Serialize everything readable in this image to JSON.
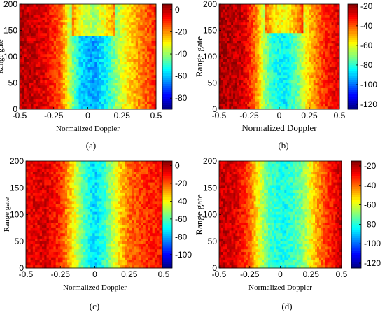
{
  "chart_data": [
    {
      "type": "heatmap",
      "panel_label": "(a)",
      "xlabel": "Normalized Doppler",
      "ylabel": "Range gate",
      "xlim": [
        -0.5,
        0.5
      ],
      "ylim": [
        0,
        200
      ],
      "xticks": [
        "-0.5",
        "-0.25",
        "0",
        "0.25",
        "0.5"
      ],
      "yticks": [
        "0",
        "50",
        "100",
        "150",
        "200"
      ],
      "colorbar": {
        "range": [
          -90,
          5
        ],
        "ticks": [
          "0",
          "-20",
          "-40",
          "-60",
          "-80"
        ]
      },
      "pattern": {
        "profile": [
          [
            -0.5,
            0
          ],
          [
            -0.32,
            -4
          ],
          [
            -0.2,
            -15
          ],
          [
            -0.12,
            -40
          ],
          [
            -0.05,
            -58
          ],
          [
            0.05,
            -63
          ],
          [
            0.15,
            -52
          ],
          [
            0.22,
            -38
          ],
          [
            0.3,
            -28
          ],
          [
            0.4,
            -18
          ],
          [
            0.5,
            -10
          ]
        ],
        "note_values_dB_at_range_gate_100": true,
        "step_at_range_gate": 140
      }
    },
    {
      "type": "heatmap",
      "panel_label": "(b)",
      "xlabel": "Normalized Doppler",
      "ylabel": "Range gate",
      "xlim": [
        -0.5,
        0.5
      ],
      "ylim": [
        0,
        200
      ],
      "xticks": [
        "-0.5",
        "-0.25",
        "0",
        "0.25",
        "0.5"
      ],
      "yticks": [
        "0",
        "50",
        "100",
        "150",
        "200"
      ],
      "colorbar": {
        "range": [
          -125,
          -18
        ],
        "ticks": [
          "-20",
          "-40",
          "-60",
          "-80",
          "-100",
          "-120"
        ]
      },
      "pattern": {
        "profile": [
          [
            -0.5,
            -22
          ],
          [
            -0.3,
            -26
          ],
          [
            -0.2,
            -42
          ],
          [
            -0.12,
            -68
          ],
          [
            -0.05,
            -82
          ],
          [
            0.05,
            -86
          ],
          [
            0.15,
            -75
          ],
          [
            0.22,
            -58
          ],
          [
            0.3,
            -45
          ],
          [
            0.4,
            -34
          ],
          [
            0.5,
            -28
          ]
        ],
        "step_at_range_gate": 145
      }
    },
    {
      "type": "heatmap",
      "panel_label": "(c)",
      "xlabel": "Normalized Doppler",
      "ylabel": "Range gate",
      "xlim": [
        -0.5,
        0.5
      ],
      "ylim": [
        0,
        200
      ],
      "xticks": [
        "-0.5",
        "-0.25",
        "0",
        "0.25",
        "0.5"
      ],
      "yticks": [
        "0",
        "50",
        "100",
        "150",
        "200"
      ],
      "colorbar": {
        "range": [
          -115,
          5
        ],
        "ticks": [
          "0",
          "-20",
          "-40",
          "-60",
          "-80",
          "-100"
        ]
      },
      "pattern": {
        "profile": [
          [
            -0.5,
            -8
          ],
          [
            -0.35,
            -6
          ],
          [
            -0.25,
            -14
          ],
          [
            -0.17,
            -35
          ],
          [
            -0.08,
            -60
          ],
          [
            0.0,
            -75
          ],
          [
            0.08,
            -62
          ],
          [
            0.17,
            -38
          ],
          [
            0.25,
            -22
          ],
          [
            0.4,
            -14
          ],
          [
            0.5,
            -10
          ]
        ],
        "step_at_range_gate": null
      }
    },
    {
      "type": "heatmap",
      "panel_label": "(d)",
      "xlabel": "Normalized Doppler",
      "ylabel": "Range gate",
      "xlim": [
        -0.5,
        0.5
      ],
      "ylim": [
        0,
        200
      ],
      "xticks": [
        "-0.5",
        "-0.25",
        "0",
        "0.25",
        "0.5"
      ],
      "yticks": [
        "0",
        "50",
        "100",
        "150",
        "200"
      ],
      "colorbar": {
        "range": [
          -125,
          -15
        ],
        "ticks": [
          "-20",
          "-40",
          "-60",
          "-80",
          "-100",
          "-120"
        ]
      },
      "pattern": {
        "profile": [
          [
            -0.5,
            -22
          ],
          [
            -0.35,
            -26
          ],
          [
            -0.25,
            -38
          ],
          [
            -0.17,
            -60
          ],
          [
            -0.08,
            -78
          ],
          [
            0.05,
            -82
          ],
          [
            0.17,
            -72
          ],
          [
            0.27,
            -52
          ],
          [
            0.35,
            -38
          ],
          [
            0.45,
            -28
          ],
          [
            0.5,
            -22
          ]
        ],
        "step_at_range_gate": null
      }
    }
  ]
}
